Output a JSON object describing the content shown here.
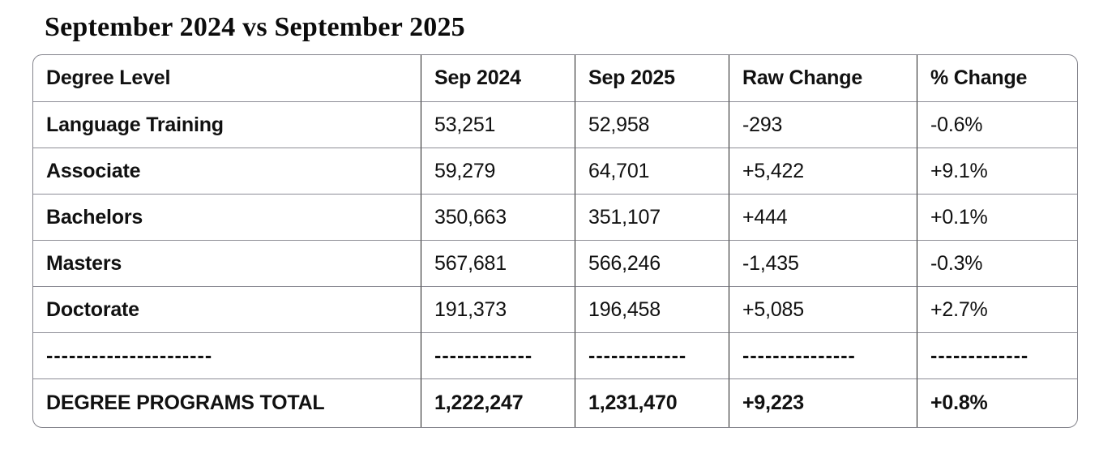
{
  "page": {
    "title": "September 2024 vs September 2025"
  },
  "table": {
    "columns": [
      "Degree Level",
      "Sep 2024",
      "Sep 2025",
      "Raw Change",
      "% Change"
    ],
    "rows": [
      [
        "Language Training",
        "53,251",
        "52,958",
        "-293",
        "-0.6%"
      ],
      [
        "Associate",
        "59,279",
        "64,701",
        "+5,422",
        "+9.1%"
      ],
      [
        "Bachelors",
        "350,663",
        "351,107",
        "+444",
        "+0.1%"
      ],
      [
        "Masters",
        "567,681",
        "566,246",
        "-1,435",
        "-0.3%"
      ],
      [
        "Doctorate",
        "191,373",
        "196,458",
        "+5,085",
        "+2.7%"
      ]
    ],
    "separator_row": [
      "----------------------",
      "-------------",
      "-------------",
      "---------------",
      "-------------"
    ],
    "total_row": [
      "DEGREE PROGRAMS TOTAL",
      "1,222,247",
      "1,231,470",
      "+9,223",
      "+0.8%"
    ]
  },
  "colors": {
    "text": "#111111",
    "outer_border": "#84848c",
    "row_divider": "#8d8d96",
    "column_divider": "#1f1f1f",
    "background": "#ffffff"
  }
}
